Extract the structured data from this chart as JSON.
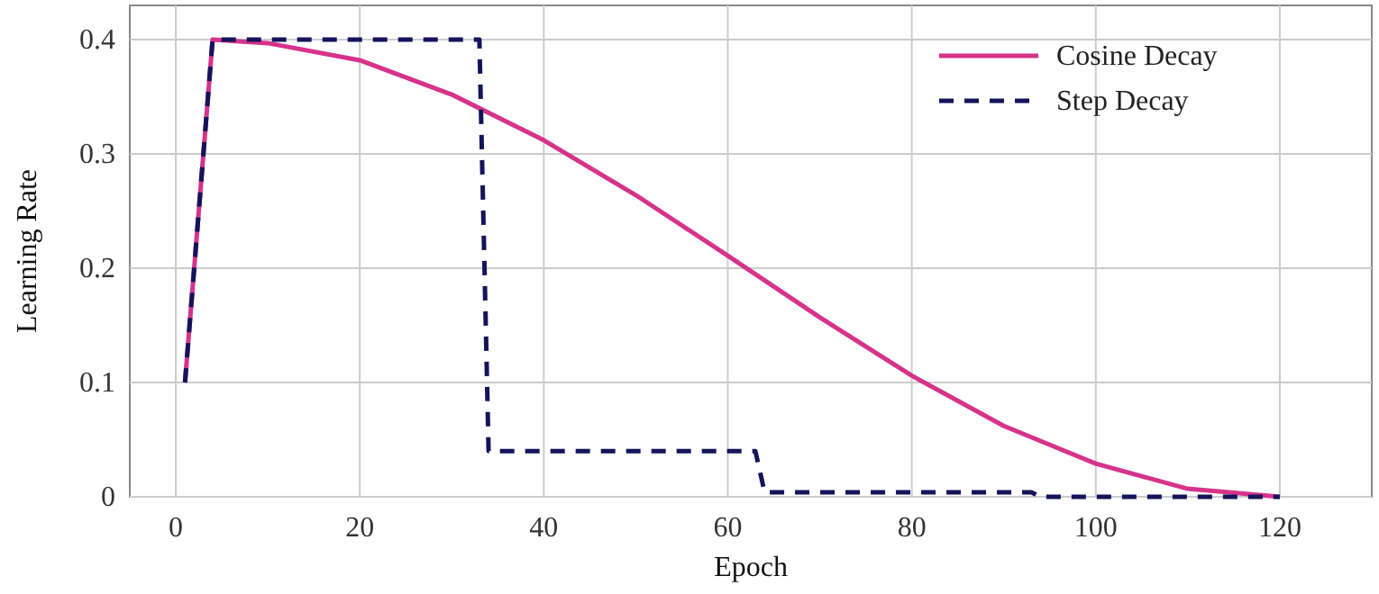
{
  "chart_data": {
    "type": "line",
    "xlabel": "Epoch",
    "ylabel": "Learning Rate",
    "xlim": [
      -5,
      130
    ],
    "ylim": [
      0,
      0.43
    ],
    "xticks": [
      0,
      20,
      40,
      60,
      80,
      100,
      120
    ],
    "yticks": [
      0,
      0.1,
      0.2,
      0.3,
      0.4
    ],
    "grid": true,
    "legend": "top right",
    "marker": "none",
    "series": [
      {
        "name": "Cosine Decay",
        "color": "#d6338a",
        "line_style": "solid",
        "x": [
          1,
          4,
          10,
          20,
          30,
          40,
          50,
          60,
          70,
          80,
          90,
          100,
          110,
          120
        ],
        "values": [
          0.1,
          0.4,
          0.397,
          0.382,
          0.352,
          0.312,
          0.264,
          0.211,
          0.157,
          0.106,
          0.062,
          0.029,
          0.007,
          0
        ]
      },
      {
        "name": "Step Decay",
        "color": "#14145a",
        "line_style": "dashed",
        "x": [
          1,
          4,
          33,
          34,
          63,
          64,
          93,
          94,
          120
        ],
        "values": [
          0.1,
          0.4,
          0.4,
          0.04,
          0.04,
          0.004,
          0.004,
          0,
          0
        ]
      }
    ]
  }
}
